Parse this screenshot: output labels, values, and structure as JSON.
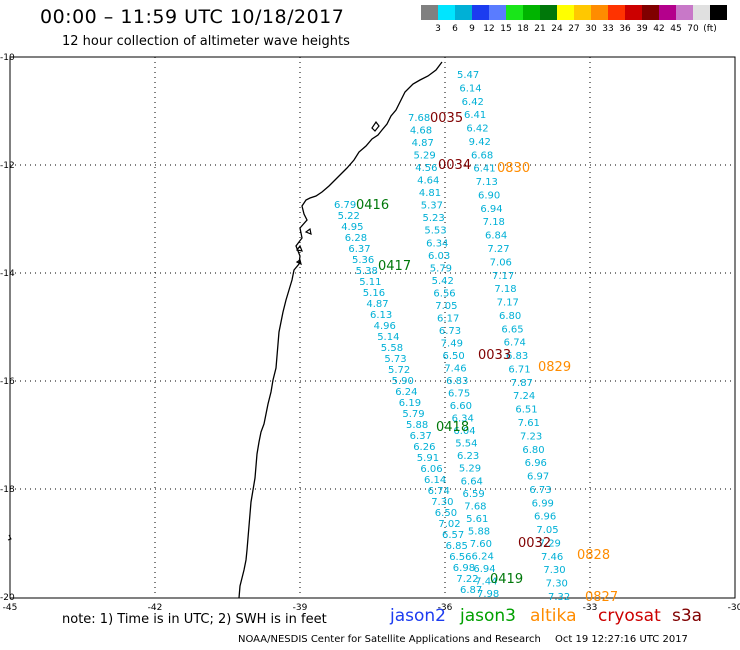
{
  "header": {
    "title": "00:00 – 11:59 UTC 10/18/2017",
    "subtitle": "12 hour collection of altimeter wave heights"
  },
  "colorbar": {
    "colors": [
      "#808080",
      "#00e5ff",
      "#00b0d6",
      "#1c3cf0",
      "#5a7cff",
      "#19e619",
      "#00b400",
      "#00780a",
      "#ffff00",
      "#ffc800",
      "#ff8c00",
      "#ff3300",
      "#cc0000",
      "#800000",
      "#b4008c",
      "#c878c8",
      "#e0e0e0",
      "#000000"
    ],
    "labels": [
      "3",
      "6",
      "9",
      "12",
      "15",
      "18",
      "21",
      "24",
      "27",
      "30",
      "33",
      "36",
      "39",
      "42",
      "45",
      "70",
      "(ft)"
    ]
  },
  "axes": {
    "lat_labels": [
      "-10",
      "-12",
      "-14",
      "-16",
      "-18",
      "-20"
    ],
    "lon_labels": [
      "-45",
      "-42",
      "-39",
      "-36",
      "-33",
      "-30"
    ]
  },
  "tracks": [
    {
      "name": "track-a",
      "values": [
        "5.47",
        "6.14",
        "6.42",
        "6.41",
        "6.42",
        "9.42",
        "6.68",
        "6.41",
        "7.13",
        "6.90",
        "6.94",
        "7.18",
        "6.84",
        "7.27",
        "7.06",
        "7.17",
        "7.18",
        "7.17",
        "6.80",
        "6.65",
        "6.74",
        "6.83",
        "6.71",
        "7.87",
        "7.24",
        "6.51",
        "7.61",
        "7.23",
        "6.80",
        "6.96",
        "6.97",
        "6.73",
        "6.99",
        "6.96",
        "7.05",
        "7.29",
        "7.46",
        "7.30",
        "7.30",
        "7.32"
      ]
    },
    {
      "name": "track-b",
      "values": [
        "7.68",
        "4.68",
        "4.87",
        "5.29",
        "4.56",
        "4.64",
        "4.81",
        "5.37",
        "5.23",
        "5.53",
        "6.34",
        "6.03",
        "5.79",
        "5.42",
        "6.56",
        "7.05",
        "6.17",
        "6.73",
        "7.49",
        "6.50",
        "7.46",
        "6.83",
        "6.75",
        "6.60",
        "6.34",
        "6.04",
        "5.54",
        "6.23",
        "5.29",
        "6.64",
        "6.59",
        "7.68",
        "5.61",
        "5.88",
        "7.60",
        "6.24",
        "6.94",
        "7.44",
        "7.98"
      ]
    },
    {
      "name": "track-c",
      "values": [
        "6.79",
        "5.22",
        "4.95",
        "6.28",
        "6.37",
        "5.36",
        "5.38",
        "5.11",
        "5.16",
        "4.87",
        "6.13",
        "4.96",
        "5.14",
        "5.58",
        "5.73",
        "5.72",
        "5.90",
        "6.24",
        "6.19",
        "5.79",
        "5.88",
        "6.37",
        "6.26",
        "5.91",
        "6.06",
        "6.14",
        "6.74",
        "7.30",
        "6.50",
        "7.02",
        "6.57",
        "6.85",
        "6.56",
        "6.98",
        "7.22",
        "6.87"
      ]
    }
  ],
  "pass_labels": [
    {
      "text": "0035",
      "color": "#800000"
    },
    {
      "text": "0034",
      "color": "#800000"
    },
    {
      "text": "0830",
      "color": "#ff8c00"
    },
    {
      "text": "0416",
      "color": "#00780a"
    },
    {
      "text": "0417",
      "color": "#00780a"
    },
    {
      "text": "0033",
      "color": "#800000"
    },
    {
      "text": "0829",
      "color": "#ff8c00"
    },
    {
      "text": "0418",
      "color": "#00780a"
    },
    {
      "text": "0032",
      "color": "#800000"
    },
    {
      "text": "0828",
      "color": "#ff8c00"
    },
    {
      "text": "0419",
      "color": "#00780a"
    },
    {
      "text": "0827",
      "color": "#ff8c00"
    }
  ],
  "note": "note:  1) Time is in UTC;  2) SWH is in feet",
  "legend": [
    {
      "label": "jason2",
      "color": "#1c3cf0"
    },
    {
      "label": "jason3",
      "color": "#00a000"
    },
    {
      "label": "altika",
      "color": "#ff8c00"
    },
    {
      "label": "cryosat",
      "color": "#cc0000"
    },
    {
      "label": "s3a",
      "color": "#800000"
    }
  ],
  "footer": {
    "source": "NOAA/NESDIS Center for Satellite Applications and Research",
    "timestamp": "Oct 19 12:27:16 UTC 2017"
  }
}
